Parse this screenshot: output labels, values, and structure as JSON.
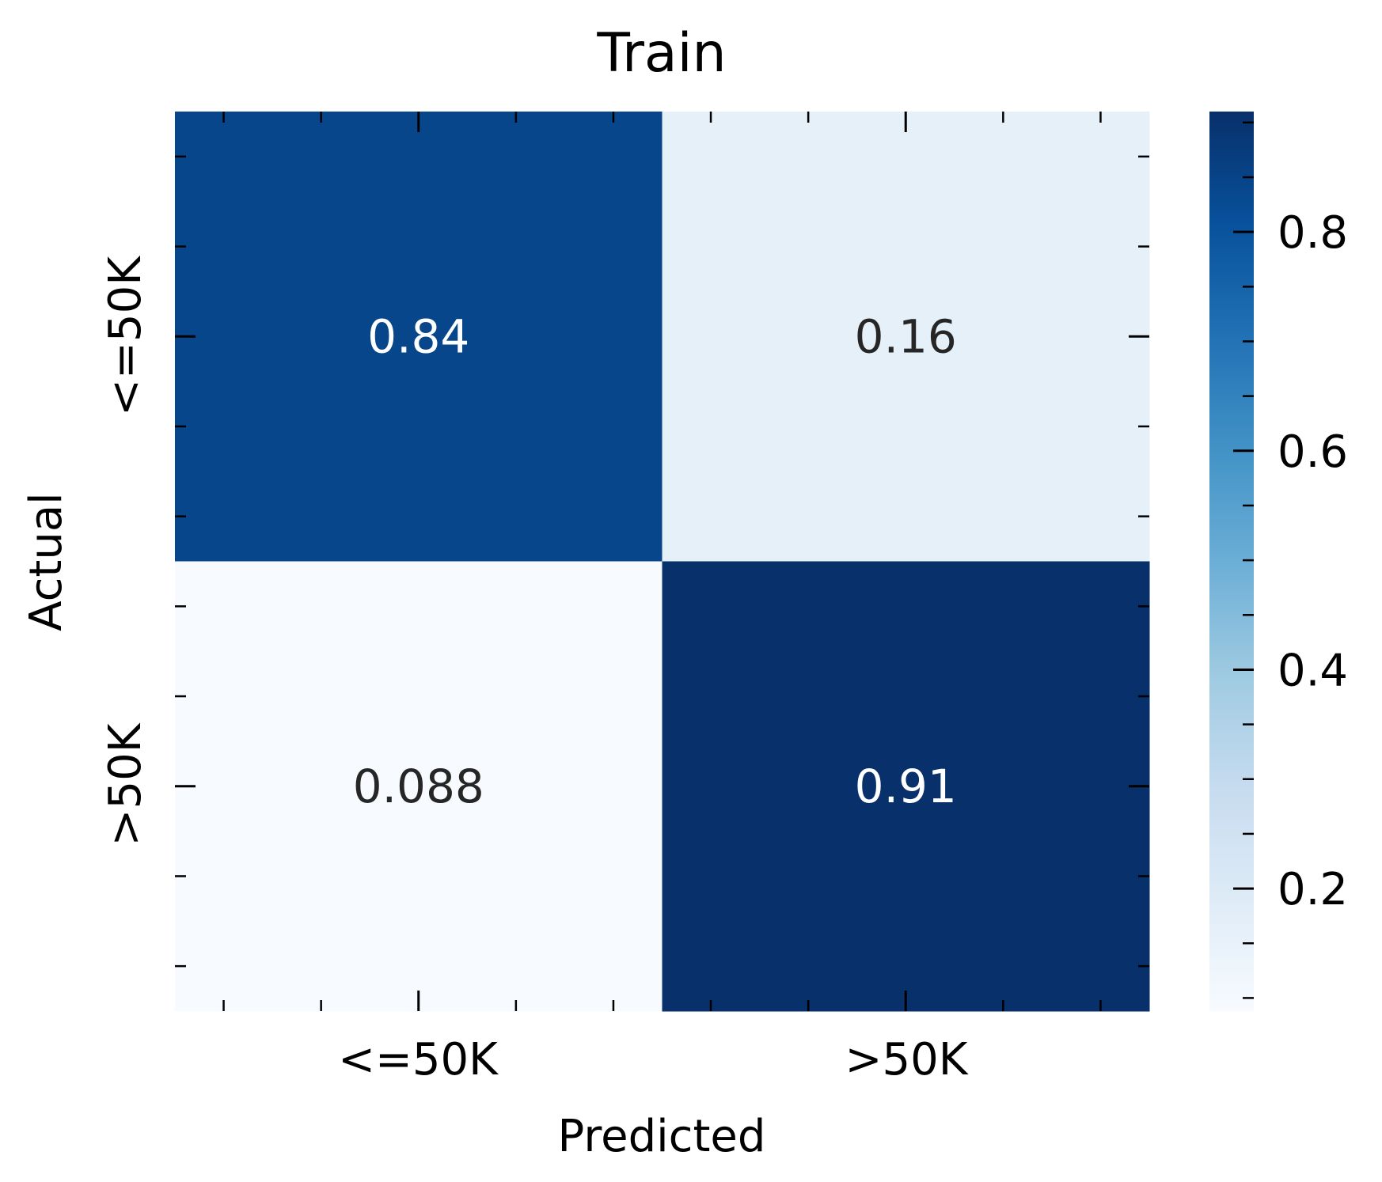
{
  "chart_data": {
    "type": "heatmap",
    "title": "Train",
    "xlabel": "Predicted",
    "ylabel": "Actual",
    "x_categories": [
      "<=50K",
      ">50K"
    ],
    "y_categories": [
      "<=50K",
      ">50K"
    ],
    "values": [
      [
        0.84,
        0.16
      ],
      [
        0.088,
        0.91
      ]
    ],
    "value_labels": [
      [
        "0.84",
        "0.16"
      ],
      [
        "0.088",
        "0.91"
      ]
    ],
    "colormap": "Blues",
    "colorbar": {
      "range": [
        0.088,
        0.91
      ],
      "ticks": [
        0.2,
        0.4,
        0.6,
        0.8
      ],
      "tick_labels": [
        "0.2",
        "0.4",
        "0.6",
        "0.8"
      ],
      "minor_step": 0.05
    },
    "palette": {
      "light_text": "#ffffff",
      "dark_text": "#262626",
      "stops": [
        "#f7fbff",
        "#deebf7",
        "#c6dbef",
        "#9ecae1",
        "#6baed6",
        "#4292c6",
        "#2171b5",
        "#08519c",
        "#08306b"
      ]
    }
  }
}
